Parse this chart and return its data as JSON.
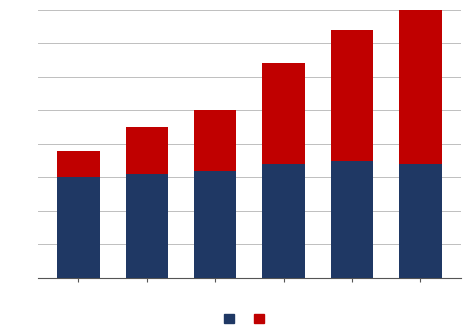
{
  "categories": [
    "",
    "",
    "",
    "",
    "",
    ""
  ],
  "blue_values": [
    300,
    310,
    320,
    340,
    350,
    340
  ],
  "red_values": [
    80,
    140,
    180,
    300,
    390,
    470
  ],
  "blue_color": "#1F3864",
  "red_color": "#C00000",
  "ylim": [
    0,
    800
  ],
  "grid_color": "#BFBFBF",
  "background_color": "#FFFFFF",
  "legend_colors": [
    "#1F3864",
    "#C00000"
  ]
}
